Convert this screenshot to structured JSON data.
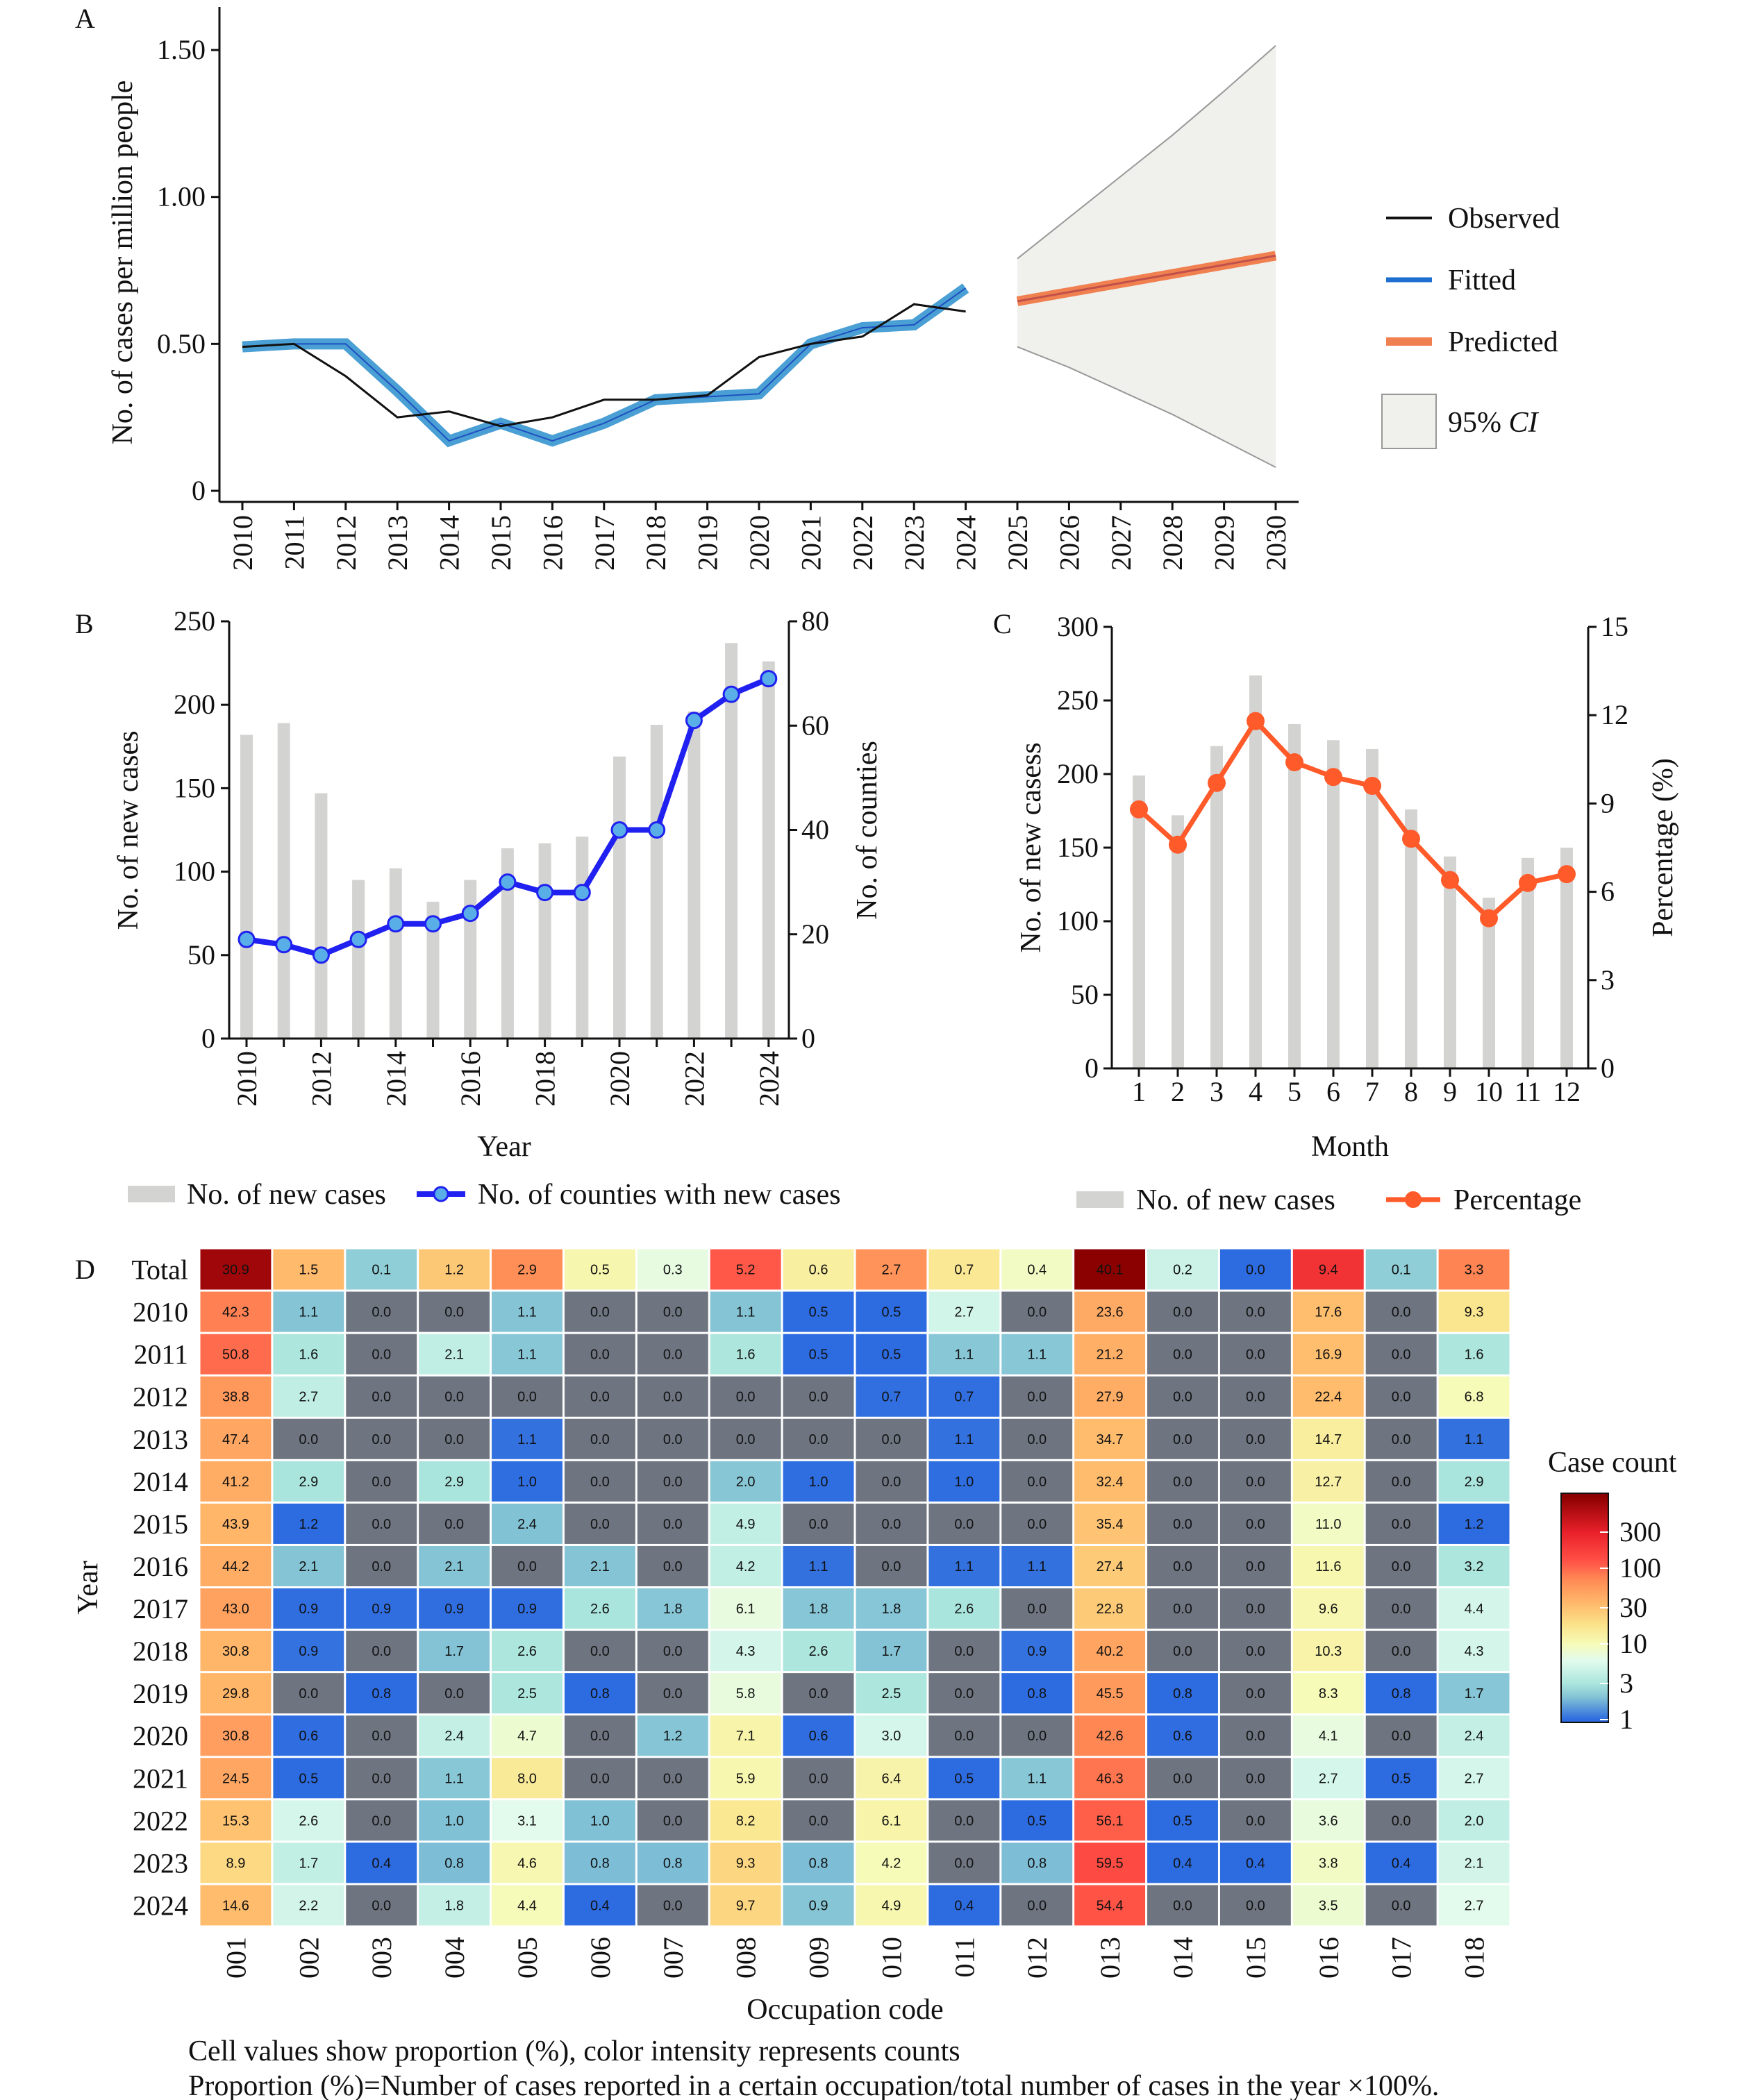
{
  "chart_data": [
    {
      "panel": "A",
      "type": "line",
      "ylabel": "No. of cases per million people",
      "ylim": [
        0,
        1.6
      ],
      "yticks": [
        0,
        0.5,
        1.0,
        1.5
      ],
      "ytick_labels": [
        "0",
        "0.50",
        "1.00",
        "1.50"
      ],
      "x": [
        2010,
        2011,
        2012,
        2013,
        2014,
        2015,
        2016,
        2017,
        2018,
        2019,
        2020,
        2021,
        2022,
        2023,
        2024,
        2025,
        2026,
        2027,
        2028,
        2029,
        2030
      ],
      "observed": {
        "name": "Observed",
        "x": [
          2010,
          2011,
          2012,
          2013,
          2014,
          2015,
          2016,
          2017,
          2018,
          2019,
          2020,
          2021,
          2022,
          2023,
          2024
        ],
        "values": [
          0.49,
          0.5,
          0.39,
          0.25,
          0.27,
          0.22,
          0.25,
          0.31,
          0.31,
          0.325,
          0.455,
          0.5,
          0.525,
          0.635,
          0.61
        ]
      },
      "fitted": {
        "name": "Fitted",
        "x": [
          2010,
          2011,
          2012,
          2013,
          2014,
          2015,
          2016,
          2017,
          2018,
          2019,
          2020,
          2021,
          2022,
          2023,
          2024
        ],
        "values": [
          0.49,
          0.5,
          0.5,
          0.34,
          0.17,
          0.23,
          0.17,
          0.23,
          0.31,
          0.32,
          0.33,
          0.5,
          0.555,
          0.565,
          0.69
        ]
      },
      "predicted": {
        "name": "Predicted",
        "x": [
          2025,
          2026,
          2027,
          2028,
          2029,
          2030
        ],
        "values": [
          0.645,
          0.676,
          0.707,
          0.738,
          0.769,
          0.8
        ]
      },
      "ci": {
        "name_prefix": "95%",
        "name_italic": "CI",
        "x": [
          2025,
          2026,
          2027,
          2028,
          2029,
          2030
        ],
        "upper": [
          0.79,
          0.93,
          1.07,
          1.21,
          1.36,
          1.515
        ],
        "lower": [
          0.49,
          0.42,
          0.34,
          0.26,
          0.17,
          0.08
        ]
      },
      "legend_placement": "right",
      "colors": {
        "observed": "#111111",
        "fitted": "#4A9FD4",
        "fitted_center": "#1E50C0",
        "predicted": "#F08050",
        "predicted_center": "#C0504A",
        "ci_fill": "#F0F0EC",
        "ci_edge": "#999999"
      }
    },
    {
      "panel": "B",
      "type": "bar+line",
      "xlabel": "Year",
      "ylabel_left": "No. of new cases",
      "ylabel_right": "No. of counties",
      "ylim_left": [
        0,
        250
      ],
      "ylim_right": [
        0,
        80
      ],
      "yticks_left": [
        0,
        50,
        100,
        150,
        200,
        250
      ],
      "yticks_right": [
        0,
        20,
        40,
        60,
        80
      ],
      "x": [
        2010,
        2011,
        2012,
        2013,
        2014,
        2015,
        2016,
        2017,
        2018,
        2019,
        2020,
        2021,
        2022,
        2023,
        2024
      ],
      "xtick_labels": [
        "2010",
        "2012",
        "2014",
        "2016",
        "2018",
        "2020",
        "2022",
        "2024"
      ],
      "series": [
        {
          "name": "No. of new cases",
          "type": "bar",
          "axis": "left",
          "values": [
            182,
            189,
            147,
            95,
            102,
            82,
            95,
            114,
            117,
            121,
            169,
            188,
            196,
            237,
            226
          ]
        },
        {
          "name": "No. of counties with new cases",
          "type": "line",
          "axis": "right",
          "values": [
            19,
            18,
            16,
            19,
            22,
            22,
            24,
            30,
            28,
            28,
            40,
            40,
            61,
            66,
            69
          ]
        }
      ],
      "legend_placement": "bottom",
      "colors": {
        "bar": "#D3D3D1",
        "line": "#2020F0",
        "marker": "#5AAEE8"
      }
    },
    {
      "panel": "C",
      "type": "bar+line",
      "xlabel": "Month",
      "ylabel_left": "No. of new casess",
      "ylabel_right": "Percentage (%)",
      "ylim_left": [
        0,
        300
      ],
      "ylim_right": [
        0,
        15
      ],
      "yticks_left": [
        0,
        50,
        100,
        150,
        200,
        250,
        300
      ],
      "yticks_right": [
        0,
        3,
        6,
        9,
        12,
        15
      ],
      "x": [
        1,
        2,
        3,
        4,
        5,
        6,
        7,
        8,
        9,
        10,
        11,
        12
      ],
      "series": [
        {
          "name": "No. of new cases",
          "type": "bar",
          "axis": "left",
          "values": [
            199,
            172,
            219,
            267,
            234,
            223,
            217,
            176,
            144,
            116,
            143,
            150
          ]
        },
        {
          "name": "Percentage",
          "type": "line",
          "axis": "right",
          "values": [
            8.8,
            7.6,
            9.7,
            11.8,
            10.4,
            9.9,
            9.6,
            7.8,
            6.4,
            5.1,
            6.3,
            6.6
          ]
        }
      ],
      "legend_placement": "bottom",
      "colors": {
        "bar": "#D3D3D1",
        "line": "#FF5A2A"
      }
    },
    {
      "panel": "D",
      "type": "heatmap",
      "xlabel": "Occupation code",
      "ylabel": "Year",
      "columns": [
        "001",
        "002",
        "003",
        "004",
        "005",
        "006",
        "007",
        "008",
        "009",
        "010",
        "011",
        "012",
        "013",
        "014",
        "015",
        "016",
        "017",
        "018"
      ],
      "rows": [
        "Total",
        "2010",
        "2011",
        "2012",
        "2013",
        "2014",
        "2015",
        "2016",
        "2017",
        "2018",
        "2019",
        "2020",
        "2021",
        "2022",
        "2023",
        "2024"
      ],
      "values": [
        [
          30.9,
          1.5,
          0.1,
          1.2,
          2.9,
          0.5,
          0.3,
          5.2,
          0.6,
          2.7,
          0.7,
          0.4,
          40.1,
          0.2,
          0.0,
          9.4,
          0.1,
          3.3
        ],
        [
          42.3,
          1.1,
          0.0,
          0.0,
          1.1,
          0.0,
          0.0,
          1.1,
          0.5,
          0.5,
          2.7,
          0.0,
          23.6,
          0.0,
          0.0,
          17.6,
          0.0,
          9.3
        ],
        [
          50.8,
          1.6,
          0.0,
          2.1,
          1.1,
          0.0,
          0.0,
          1.6,
          0.5,
          0.5,
          1.1,
          1.1,
          21.2,
          0.0,
          0.0,
          16.9,
          0.0,
          1.6
        ],
        [
          38.8,
          2.7,
          0.0,
          0.0,
          0.0,
          0.0,
          0.0,
          0.0,
          0.0,
          0.7,
          0.7,
          0.0,
          27.9,
          0.0,
          0.0,
          22.4,
          0.0,
          6.8
        ],
        [
          47.4,
          0.0,
          0.0,
          0.0,
          1.1,
          0.0,
          0.0,
          0.0,
          0.0,
          0.0,
          1.1,
          0.0,
          34.7,
          0.0,
          0.0,
          14.7,
          0.0,
          1.1
        ],
        [
          41.2,
          2.9,
          0.0,
          2.9,
          1.0,
          0.0,
          0.0,
          2.0,
          1.0,
          0.0,
          1.0,
          0.0,
          32.4,
          0.0,
          0.0,
          12.7,
          0.0,
          2.9
        ],
        [
          43.9,
          1.2,
          0.0,
          0.0,
          2.4,
          0.0,
          0.0,
          4.9,
          0.0,
          0.0,
          0.0,
          0.0,
          35.4,
          0.0,
          0.0,
          11.0,
          0.0,
          1.2
        ],
        [
          44.2,
          2.1,
          0.0,
          2.1,
          0.0,
          2.1,
          0.0,
          4.2,
          1.1,
          0.0,
          1.1,
          1.1,
          27.4,
          0.0,
          0.0,
          11.6,
          0.0,
          3.2
        ],
        [
          43.0,
          0.9,
          0.9,
          0.9,
          0.9,
          2.6,
          1.8,
          6.1,
          1.8,
          1.8,
          2.6,
          0.0,
          22.8,
          0.0,
          0.0,
          9.6,
          0.0,
          4.4
        ],
        [
          30.8,
          0.9,
          0.0,
          1.7,
          2.6,
          0.0,
          0.0,
          4.3,
          2.6,
          1.7,
          0.0,
          0.9,
          40.2,
          0.0,
          0.0,
          10.3,
          0.0,
          4.3
        ],
        [
          29.8,
          0.0,
          0.8,
          0.0,
          2.5,
          0.8,
          0.0,
          5.8,
          0.0,
          2.5,
          0.0,
          0.8,
          45.5,
          0.8,
          0.0,
          8.3,
          0.8,
          1.7
        ],
        [
          30.8,
          0.6,
          0.0,
          2.4,
          4.7,
          0.0,
          1.2,
          7.1,
          0.6,
          3.0,
          0.0,
          0.0,
          42.6,
          0.6,
          0.0,
          4.1,
          0.0,
          2.4
        ],
        [
          24.5,
          0.5,
          0.0,
          1.1,
          8.0,
          0.0,
          0.0,
          5.9,
          0.0,
          6.4,
          0.5,
          1.1,
          46.3,
          0.0,
          0.0,
          2.7,
          0.5,
          2.7
        ],
        [
          15.3,
          2.6,
          0.0,
          1.0,
          3.1,
          1.0,
          0.0,
          8.2,
          0.0,
          6.1,
          0.0,
          0.5,
          56.1,
          0.5,
          0.0,
          3.6,
          0.0,
          2.0
        ],
        [
          8.9,
          1.7,
          0.4,
          0.8,
          4.6,
          0.8,
          0.8,
          9.3,
          0.8,
          4.2,
          0.0,
          0.8,
          59.5,
          0.4,
          0.4,
          3.8,
          0.4,
          2.1
        ],
        [
          14.6,
          2.2,
          0.0,
          1.8,
          4.4,
          0.4,
          0.0,
          9.7,
          0.9,
          4.9,
          0.4,
          0.0,
          54.4,
          0.0,
          0.0,
          3.5,
          0.0,
          2.7
        ]
      ],
      "colorbar": {
        "title": "Case count",
        "scale": "log",
        "ticks": [
          1,
          3,
          10,
          30,
          100,
          300
        ],
        "tick_labels": [
          "1",
          "3",
          "10",
          "30",
          "100",
          "300"
        ]
      },
      "colors": {
        "zero": "#6E7480",
        "scale": [
          "#2D6BE0",
          "#84C4D5",
          "#ABE6DD",
          "#E2FBEE",
          "#F6FBB8",
          "#FBE38A",
          "#FFB86A",
          "#FF8A55",
          "#FF4E45",
          "#E8202A",
          "#8B0000"
        ]
      },
      "captions": [
        "Cell values show proportion (%), color intensity represents counts",
        "Proportion (%)=Number of cases reported in a certain occupation/total number of cases in the year ×100%."
      ]
    }
  ]
}
